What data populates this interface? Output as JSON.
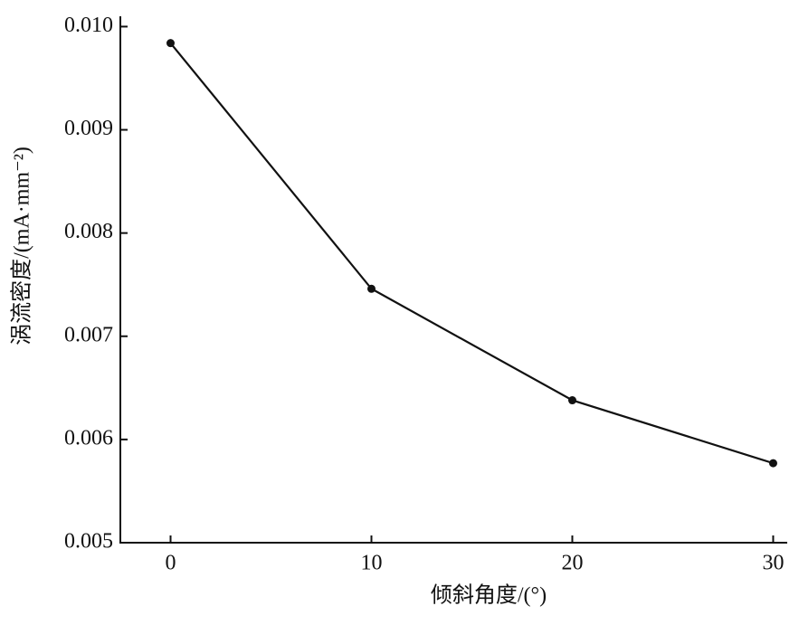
{
  "chart_data": {
    "type": "line",
    "x_label": "倾斜角度/(°)",
    "y_label": "涡流密度/(mA·mm⁻²)",
    "x": [
      0,
      10,
      20,
      30
    ],
    "series": [
      {
        "color": "#111111",
        "values": [
          0.00984,
          0.00746,
          0.00638,
          0.00577
        ]
      }
    ],
    "xlim": [
      -2.5,
      30.7
    ],
    "xticks": [
      0,
      10,
      20,
      30
    ],
    "ylim": [
      0.005,
      0.0101
    ],
    "yticks": [
      0.005,
      0.006,
      0.007,
      0.008,
      0.009,
      {
        "value": 0.01,
        "label": "0.010"
      }
    ],
    "grid": false
  }
}
